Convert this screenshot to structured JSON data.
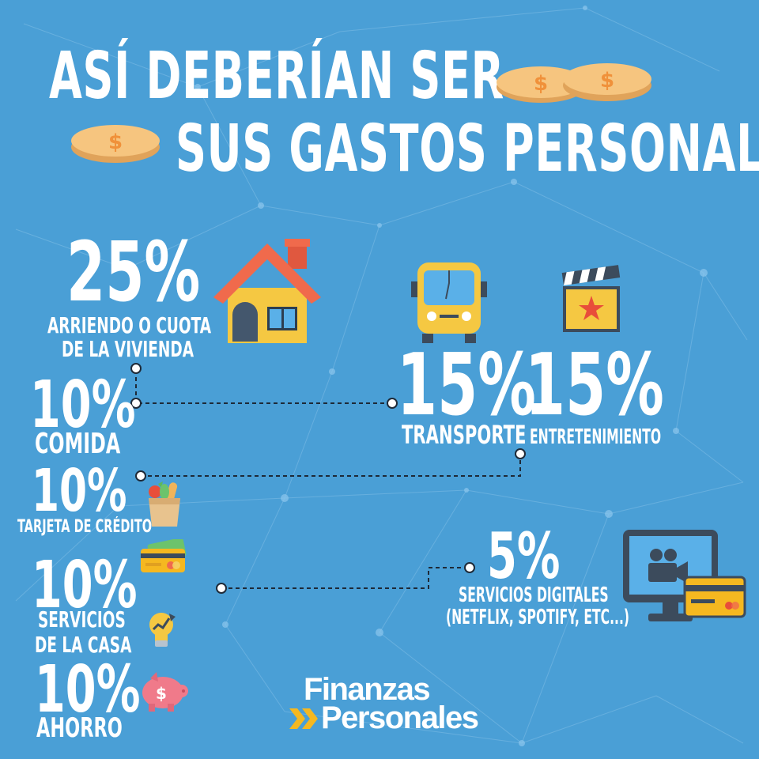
{
  "title": {
    "line1": "ASÍ DEBERÍAN SER",
    "line2": "SUS GASTOS PERSONALES"
  },
  "items": [
    {
      "id": "vivienda",
      "percent": "25%",
      "label_line1": "ARRIENDO O CUOTA",
      "label_line2": "DE LA VIVIENDA",
      "icon": "house-icon"
    },
    {
      "id": "comida",
      "percent": "10%",
      "label_line1": "COMIDA",
      "icon": "grocery-bag-icon"
    },
    {
      "id": "tarjeta",
      "percent": "10%",
      "label_line1": "TARJETA DE CRÉDITO",
      "icon": "credit-card-cash-icon"
    },
    {
      "id": "servicios-casa",
      "percent": "10%",
      "label_line1": "SERVICIOS",
      "label_line2": "DE LA CASA",
      "icon": "lightbulb-icon"
    },
    {
      "id": "ahorro",
      "percent": "10%",
      "label_line1": "AHORRO",
      "icon": "piggy-bank-icon"
    },
    {
      "id": "transporte",
      "percent": "15%",
      "label_line1": "TRANSPORTE",
      "icon": "bus-icon"
    },
    {
      "id": "entretenimiento",
      "percent": "15%",
      "label_line1": "ENTRETENIMIENTO",
      "icon": "clapperboard-icon"
    },
    {
      "id": "servicios-digitales",
      "percent": "5%",
      "label_line1": "SERVICIOS DIGITALES",
      "label_line2": "(NETFLIX, SPOTIFY, ETC...)",
      "icon": "monitor-video-icon"
    }
  ],
  "logo": {
    "line1": "Finanzas",
    "line2": "Personales"
  },
  "colors": {
    "background": "#4a9fd6",
    "text": "#ffffff",
    "coin": "#f6c57f",
    "coin_symbol": "#f0913a",
    "logo_arrow": "#f5b820"
  }
}
